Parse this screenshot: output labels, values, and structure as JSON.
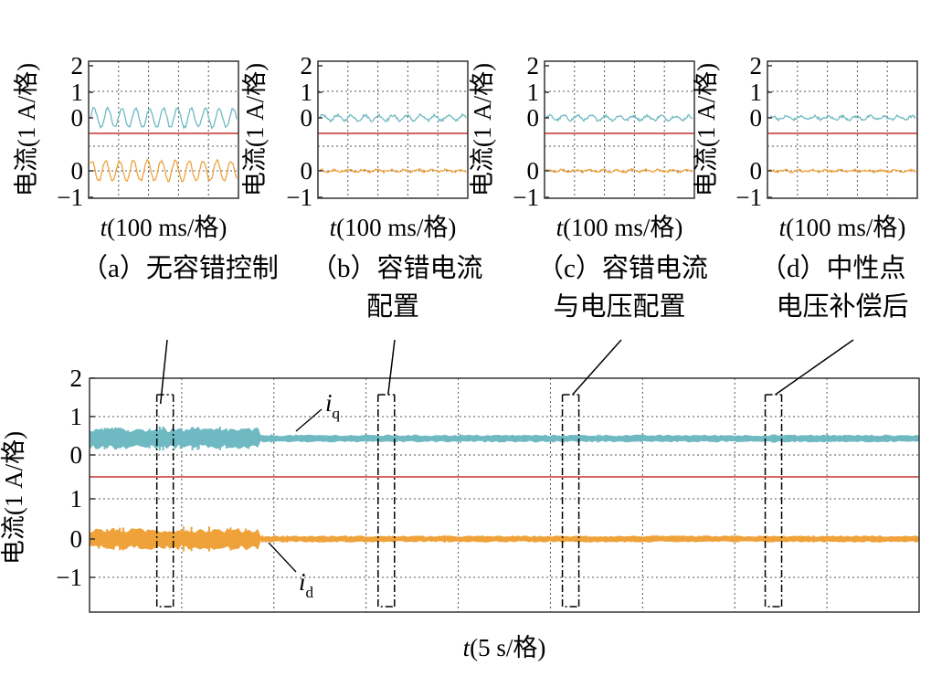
{
  "colors": {
    "iq": "#6FB9C3",
    "id": "#EFA23A",
    "ref": "#C8322D",
    "frame": "#333333",
    "grid": "#555555"
  },
  "chart_data": [
    {
      "id": "a",
      "type": "line",
      "ylabel": "电流(1 A/格)",
      "xlabel_var": "t",
      "xlabel_rest": "(100 ms/格)",
      "caption": [
        "（a）无容错控制"
      ],
      "yticks": [
        "2",
        "1",
        "0",
        "0",
        "−1"
      ],
      "series": [
        {
          "name": "i_q",
          "offset": 0.5,
          "amp": 0.36,
          "noise": 0.05
        },
        {
          "name": "i_d",
          "offset": 0.0,
          "amp": 0.38,
          "noise": 0.05
        }
      ]
    },
    {
      "id": "b",
      "type": "line",
      "ylabel": "电流(1 A/格)",
      "xlabel_var": "t",
      "xlabel_rest": "(100 ms/格)",
      "caption": [
        "（b）容错电流",
        "配置"
      ],
      "yticks": [
        "2",
        "1",
        "0",
        "0",
        "−1"
      ],
      "series": [
        {
          "name": "i_q",
          "offset": 0.5,
          "amp": 0.1,
          "noise": 0.05
        },
        {
          "name": "i_d",
          "offset": 0.0,
          "amp": 0.04,
          "noise": 0.04
        }
      ]
    },
    {
      "id": "c",
      "type": "line",
      "ylabel": "电流(1 A/格)",
      "xlabel_var": "t",
      "xlabel_rest": "(100 ms/格)",
      "caption": [
        "（c）容错电流",
        "与电压配置"
      ],
      "yticks": [
        "2",
        "1",
        "0",
        "0",
        "−1"
      ],
      "series": [
        {
          "name": "i_q",
          "offset": 0.5,
          "amp": 0.08,
          "noise": 0.05
        },
        {
          "name": "i_d",
          "offset": 0.0,
          "amp": 0.04,
          "noise": 0.04
        }
      ]
    },
    {
      "id": "d",
      "type": "line",
      "ylabel": "电流(1 A/格)",
      "xlabel_var": "t",
      "xlabel_rest": "(100 ms/格)",
      "caption": [
        "（d）中性点",
        "电压补偿后"
      ],
      "yticks": [
        "2",
        "1",
        "0",
        "0",
        "−1"
      ],
      "series": [
        {
          "name": "i_q",
          "offset": 0.5,
          "amp": 0.06,
          "noise": 0.05
        },
        {
          "name": "i_d",
          "offset": 0.0,
          "amp": 0.03,
          "noise": 0.04
        }
      ]
    },
    {
      "id": "main",
      "type": "line",
      "ylabel": "电流(1 A/格)",
      "xlabel_var": "t",
      "xlabel_rest": "(5 s/格)",
      "yticks": [
        "2",
        "1",
        "0",
        "0",
        "−1"
      ],
      "x_divisions": 9,
      "annotations": {
        "iq_var": "i",
        "iq_sub": "q",
        "id_var": "i",
        "id_sub": "d"
      },
      "series": [
        {
          "name": "i_q",
          "offset": 0.5,
          "band_before": 0.42,
          "band_after": 0.14,
          "change_at_div": 1.85
        },
        {
          "name": "i_d",
          "offset": 0.0,
          "band_before": 0.42,
          "band_after": 0.12,
          "change_at_div": 1.85
        }
      ],
      "zoom_windows_div": [
        0.75,
        3.15,
        5.15,
        7.35
      ]
    }
  ]
}
